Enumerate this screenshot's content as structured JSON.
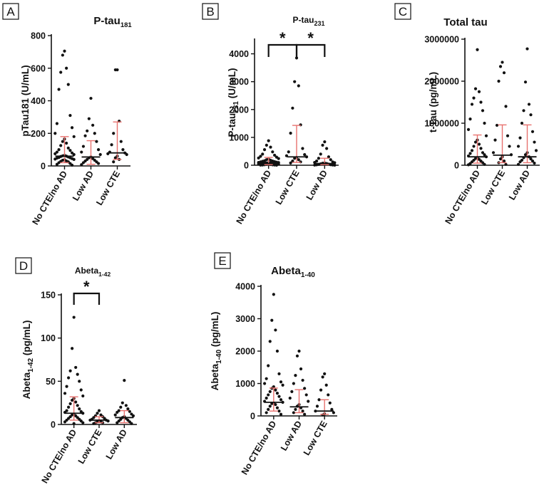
{
  "colors": {
    "points": "#111111",
    "error_bars": "#e8726f",
    "median": "#111111",
    "axis": "#111111"
  },
  "chart_data": [
    {
      "panel_label": "A",
      "type": "scatter",
      "title": "P-tau",
      "title_sub": "181",
      "ylabel": "pTau181 (U/mL)",
      "ylabel_sub": "",
      "ylabel_post": "",
      "ylim": [
        0,
        800
      ],
      "yticks": [
        "0",
        "200",
        "400",
        "600",
        "800"
      ],
      "categories": [
        "No CTE/no AD",
        "Low AD",
        "Low CTE"
      ],
      "series": [
        {
          "median": 60,
          "error": [
            20,
            180
          ],
          "points": [
            705,
            680,
            600,
            575,
            500,
            470,
            310,
            260,
            235,
            200,
            180,
            165,
            150,
            140,
            125,
            110,
            100,
            95,
            85,
            80,
            75,
            70,
            65,
            62,
            60,
            58,
            55,
            52,
            50,
            48,
            45,
            42,
            40,
            38,
            35,
            30,
            28,
            25,
            20,
            15,
            10,
            5
          ]
        },
        {
          "median": 55,
          "error": [
            10,
            155
          ],
          "points": [
            415,
            290,
            250,
            215,
            200,
            185,
            150,
            120,
            100,
            85,
            70,
            55,
            50,
            45,
            40,
            35,
            30,
            25,
            20,
            15,
            8
          ]
        },
        {
          "median": 80,
          "error": [
            40,
            270
          ],
          "points": [
            590,
            590,
            275,
            200,
            150,
            130,
            100,
            85,
            80,
            75,
            70,
            60,
            50,
            40,
            25
          ]
        }
      ],
      "significance": []
    },
    {
      "panel_label": "B",
      "type": "scatter",
      "title": "P-tau",
      "title_sub": "231",
      "ylabel": "P-tau",
      "ylabel_sub": "231",
      "ylabel_post": " (U/mL)",
      "ylim": [
        0,
        4500
      ],
      "yticks": [
        "0",
        "1000",
        "2000",
        "3000",
        "4000"
      ],
      "categories": [
        "No CTE/no AD",
        "Low CTE",
        "Low AD"
      ],
      "series": [
        {
          "median": 60,
          "error": [
            20,
            280
          ],
          "points": [
            880,
            720,
            650,
            560,
            480,
            400,
            360,
            320,
            290,
            260,
            240,
            220,
            200,
            180,
            160,
            150,
            140,
            130,
            120,
            110,
            100,
            95,
            90,
            85,
            80,
            75,
            70,
            65,
            60,
            55,
            50,
            45,
            40,
            35,
            30,
            25,
            20,
            15,
            10,
            8,
            5,
            2
          ]
        },
        {
          "median": 300,
          "error": [
            100,
            1430
          ],
          "points": [
            3850,
            3000,
            2850,
            2050,
            1450,
            1150,
            600,
            480,
            380,
            340,
            300,
            280,
            250,
            200,
            150,
            120,
            80
          ]
        },
        {
          "median": 60,
          "error": [
            20,
            250
          ],
          "points": [
            840,
            720,
            600,
            400,
            300,
            250,
            200,
            150,
            120,
            100,
            90,
            80,
            70,
            60,
            50,
            40,
            30,
            20,
            15,
            10,
            5,
            2
          ]
        }
      ],
      "significance": [
        {
          "from": 0,
          "to": 1,
          "label": "*"
        },
        {
          "from": 1,
          "to": 2,
          "label": "*"
        }
      ]
    },
    {
      "panel_label": "C",
      "type": "scatter",
      "title": "Total tau",
      "title_sub": "",
      "ylabel": "t-Tau (pg/mL)",
      "ylabel_sub": "",
      "ylabel_post": "",
      "ylim": [
        0,
        3000000
      ],
      "yticks": [
        "0",
        "1000000",
        "2000000",
        "3000000"
      ],
      "categories": [
        "No CTE/no AD",
        "Low CTE",
        "Low AD"
      ],
      "series": [
        {
          "median": 200000,
          "error": [
            50000,
            720000
          ],
          "points": [
            2750000,
            1820000,
            1750000,
            1600000,
            1500000,
            1450000,
            1300000,
            1100000,
            1000000,
            850000,
            700000,
            600000,
            550000,
            500000,
            450000,
            400000,
            350000,
            300000,
            280000,
            250000,
            220000,
            200000,
            180000,
            160000,
            140000,
            120000,
            100000,
            80000,
            60000,
            40000,
            20000,
            10000
          ]
        },
        {
          "median": 240000,
          "error": [
            60000,
            960000
          ],
          "points": [
            2450000,
            2350000,
            2200000,
            2000000,
            1400000,
            950000,
            700000,
            600000,
            450000,
            300000,
            250000,
            200000,
            150000,
            100000,
            60000,
            20000
          ]
        },
        {
          "median": 200000,
          "error": [
            60000,
            960000
          ],
          "points": [
            2770000,
            1980000,
            1450000,
            1300000,
            1200000,
            1000000,
            800000,
            650000,
            550000,
            450000,
            350000,
            300000,
            250000,
            200000,
            180000,
            150000,
            120000,
            100000,
            80000,
            50000,
            20000
          ]
        }
      ],
      "significance": []
    },
    {
      "panel_label": "D",
      "type": "scatter",
      "title": "Abeta",
      "title_sub": "1-42",
      "ylabel": "Abeta",
      "ylabel_sub": "1-42",
      "ylabel_post": " (pg/mL)",
      "ylim": [
        0,
        150
      ],
      "yticks": [
        "0",
        "50",
        "100",
        "150"
      ],
      "categories": [
        "No CTE/no AD",
        "Low CTE",
        "Low AD"
      ],
      "series": [
        {
          "median": 13,
          "error": [
            5,
            32
          ],
          "points": [
            124,
            88,
            66,
            62,
            58,
            54,
            50,
            44,
            40,
            36,
            33,
            30,
            28,
            26,
            24,
            22,
            20,
            18,
            16,
            15,
            14,
            13,
            12,
            11,
            10,
            9,
            8,
            7,
            6,
            5,
            4,
            3,
            2,
            1
          ]
        },
        {
          "median": 5,
          "error": [
            2,
            9
          ],
          "points": [
            16,
            13,
            11,
            10,
            9,
            8,
            7,
            6,
            5,
            5,
            4,
            4,
            3,
            3,
            2,
            2,
            1
          ]
        },
        {
          "median": 8,
          "error": [
            2,
            16
          ],
          "points": [
            51,
            25,
            22,
            20,
            18,
            16,
            15,
            14,
            12,
            11,
            10,
            9,
            8,
            7,
            6,
            5,
            4,
            3,
            2,
            1
          ]
        }
      ],
      "significance": [
        {
          "from": 0,
          "to": 1,
          "label": "*"
        }
      ]
    },
    {
      "panel_label": "E",
      "type": "scatter",
      "title": "Abeta",
      "title_sub": "1-40",
      "ylabel": "Abeta",
      "ylabel_sub": "1-40",
      "ylabel_post": " (pg/mL)",
      "ylim": [
        0,
        4000
      ],
      "yticks": [
        "0",
        "1000",
        "2000",
        "3000",
        "4000"
      ],
      "categories": [
        "No CTE/no AD",
        "Low AD",
        "Low CTE"
      ],
      "series": [
        {
          "median": 420,
          "error": [
            150,
            860
          ],
          "points": [
            3750,
            2950,
            2650,
            2300,
            2000,
            1550,
            1300,
            1150,
            1050,
            1000,
            950,
            900,
            850,
            800,
            750,
            700,
            650,
            600,
            550,
            500,
            450,
            420,
            400,
            380,
            350,
            300,
            250,
            200,
            150,
            100,
            50
          ]
        },
        {
          "median": 280,
          "error": [
            100,
            810
          ],
          "points": [
            2000,
            1850,
            1450,
            1250,
            1100,
            1000,
            850,
            750,
            650,
            550,
            450,
            350,
            300,
            250,
            200,
            150,
            100,
            50
          ]
        },
        {
          "median": 150,
          "error": [
            50,
            500
          ],
          "points": [
            1300,
            1200,
            950,
            800,
            650,
            500,
            400,
            300,
            200,
            150,
            100,
            60,
            30
          ]
        }
      ],
      "significance": []
    }
  ]
}
